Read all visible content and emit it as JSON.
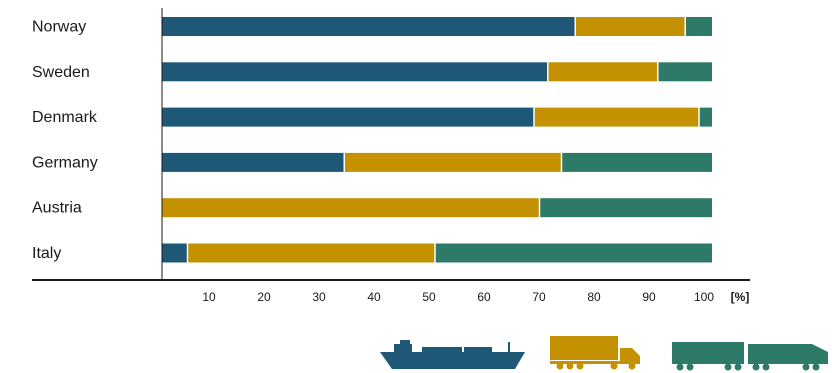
{
  "chart_data": {
    "type": "bar",
    "orientation": "horizontal",
    "stacked": true,
    "categories": [
      "Norway",
      "Sweden",
      "Denmark",
      "Germany",
      "Austria",
      "Italy"
    ],
    "series": [
      {
        "icon": "ship-icon",
        "color": "#1f5777",
        "values": [
          75,
          70,
          67.5,
          33,
          0,
          4.5
        ]
      },
      {
        "icon": "truck-icon",
        "color": "#c49103",
        "values": [
          20,
          20,
          30,
          39.5,
          68.5,
          45
        ]
      },
      {
        "icon": "train-icon",
        "color": "#2e7a69",
        "values": [
          5,
          10,
          2.5,
          27.5,
          31.5,
          50.5
        ]
      }
    ],
    "xticks": [
      10,
      20,
      30,
      40,
      50,
      60,
      70,
      80,
      90,
      100
    ],
    "xunit": "[%]",
    "xlim": [
      0,
      100
    ],
    "grid": false,
    "legend": "bottom-right (pictograms)"
  }
}
